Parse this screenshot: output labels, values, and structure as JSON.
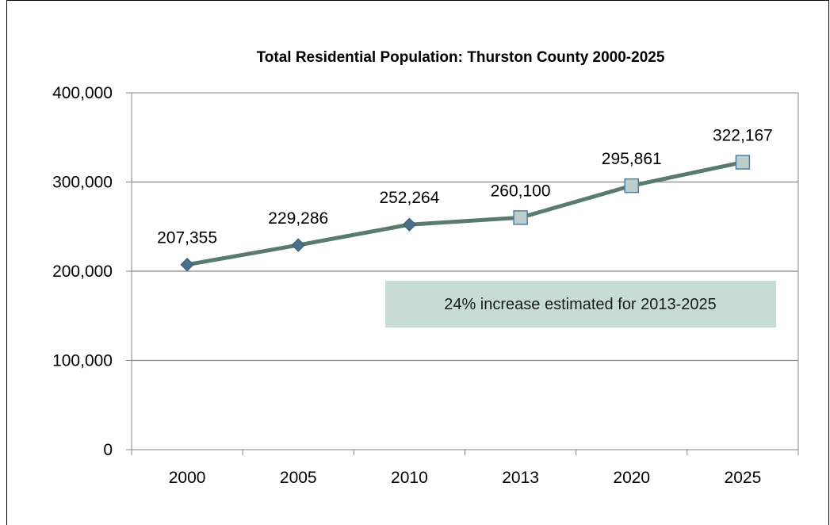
{
  "chart_data": {
    "type": "line",
    "title": "Total Residential Population: Thurston County 2000-2025",
    "xlabel": "",
    "ylabel": "",
    "categories": [
      "2000",
      "2005",
      "2010",
      "2013",
      "2020",
      "2025"
    ],
    "series": [
      {
        "values": [
          207355,
          229286,
          252264,
          260100,
          295861,
          322167
        ],
        "data_labels": [
          "207,355",
          "229,286",
          "252,264",
          "260,100",
          "295,861",
          "322,167"
        ],
        "marker_styles": [
          "diamond",
          "diamond",
          "diamond",
          "square",
          "square",
          "square"
        ]
      }
    ],
    "ylim": [
      0,
      400000
    ],
    "yticks": [
      0,
      100000,
      200000,
      300000,
      400000
    ],
    "ytick_labels": [
      "0",
      "100,000",
      "200,000",
      "300,000",
      "400,000"
    ],
    "grid": true,
    "annotation": "24% increase estimated for 2013-2025",
    "colors": {
      "line": "#5a7a6e",
      "diamond_marker": "#4a6f8a",
      "square_fill": "#bccfca",
      "square_edge": "#4f7fa8",
      "annotation_bg": "#c8dbd5",
      "gridline": "#868686"
    }
  }
}
